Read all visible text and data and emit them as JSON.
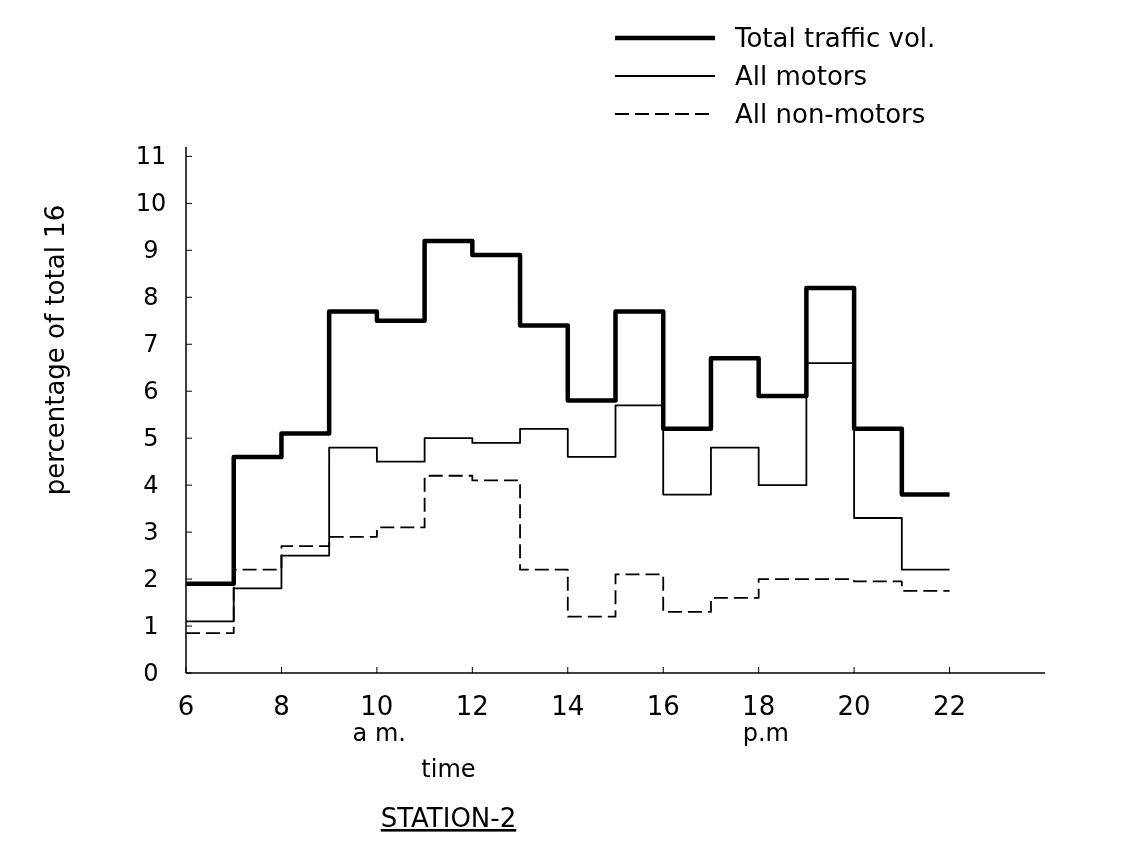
{
  "chart_data": {
    "type": "step",
    "title": "STATION-2",
    "xlabel": "time",
    "ylabel": "percentage of total 16",
    "annotations": [
      "a m.",
      "p.m"
    ],
    "x": [
      6,
      7,
      8,
      9,
      10,
      11,
      12,
      13,
      14,
      15,
      16,
      17,
      18,
      19,
      20,
      21,
      22
    ],
    "series": [
      {
        "name": "Total traffic vol.",
        "color": "#000000",
        "line_style": "solid",
        "values": [
          1.9,
          4.6,
          5.1,
          7.7,
          7.5,
          9.2,
          8.9,
          7.4,
          5.8,
          7.7,
          5.2,
          6.7,
          5.9,
          8.2,
          5.2,
          3.8,
          3.8
        ]
      },
      {
        "name": "All motors",
        "color": "#000000",
        "line_style": "solid",
        "values": [
          1.1,
          1.8,
          2.5,
          4.8,
          4.5,
          5.0,
          4.9,
          5.2,
          4.6,
          5.7,
          3.8,
          4.8,
          4.0,
          6.6,
          3.3,
          2.2,
          2.2
        ]
      },
      {
        "name": "All non-motors",
        "color": "#000000",
        "line_style": "dashed",
        "values": [
          0.85,
          2.2,
          2.7,
          2.9,
          3.1,
          4.2,
          4.1,
          2.2,
          1.2,
          2.1,
          1.3,
          1.6,
          2.0,
          2.0,
          1.95,
          1.75,
          1.75
        ]
      }
    ],
    "xlim": [
      6,
      24
    ],
    "xticks": [
      6,
      8,
      10,
      12,
      14,
      16,
      18,
      20,
      22
    ],
    "ylim": [
      0,
      11.2
    ],
    "yticks": [
      0,
      1,
      2,
      3,
      4,
      5,
      6,
      7,
      8,
      9,
      10,
      11
    ],
    "grid": false,
    "legend": "top right"
  }
}
